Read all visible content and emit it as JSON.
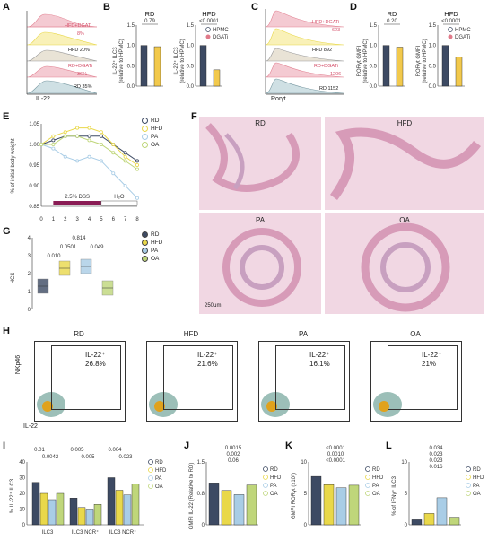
{
  "panels": {
    "A": {
      "letter": "A",
      "xlabel": "IL-22",
      "labels": [
        "HFD+DGATi",
        "8%",
        "HFD 20%",
        "RD+DGATi",
        "36%",
        "RD 35%"
      ]
    },
    "B": {
      "letter": "B",
      "rd_title": "RD",
      "hfd_title": "HFD",
      "ylabel": "IL-22⁺ ILC3",
      "ylabel2": "(relative to HPMC)",
      "p_rd": "0.79",
      "p_hfd": "<0.0001",
      "legend": [
        "HPMC",
        "DGATi"
      ]
    },
    "C": {
      "letter": "C",
      "xlabel": "Rorγt",
      "labels": [
        "HFD+DGATi",
        "623",
        "HFD 892",
        "RD+DGATi",
        "1206",
        "RD 1152"
      ]
    },
    "D": {
      "letter": "D",
      "rd_title": "RD",
      "hfd_title": "HFD",
      "ylabel": "RORγt GMFI",
      "ylabel2": "(relative to HPMC)",
      "p_rd": "0.20",
      "p_hfd": "<0.0001",
      "legend": [
        "HPMC",
        "DGATi"
      ]
    },
    "E": {
      "letter": "E",
      "ylabel": "% of initial body weight",
      "dss": "2.5% DSS",
      "h2o": "H₂O",
      "legend": [
        "RD",
        "HFD",
        "PA",
        "OA"
      ]
    },
    "F": {
      "letter": "F",
      "titles": [
        "RD",
        "HFD",
        "PA",
        "OA"
      ],
      "scale": "250μm"
    },
    "G": {
      "letter": "G",
      "ylabel": "HCS",
      "pvals": [
        "0.814",
        "0.0501",
        "0.049",
        "0.010"
      ],
      "legend": [
        "RD",
        "HFD",
        "PA",
        "OA"
      ]
    },
    "H": {
      "letter": "H",
      "ylabel": "NKp46",
      "xlabel": "IL-22",
      "gate_label": "IL-22⁺",
      "titles": [
        "RD",
        "HFD",
        "PA",
        "OA"
      ],
      "values": [
        "26.8%",
        "21.6%",
        "16.1%",
        "21%"
      ]
    },
    "I": {
      "letter": "I",
      "ylabel": "% IL-22⁺ ILC3",
      "groups": [
        "ILC3",
        "ILC3 NCR⁺",
        "ILC3 NCR⁻"
      ],
      "pvals": [
        "0.01",
        "0.0042",
        "0.005",
        "0.005",
        "0.004",
        "0.023"
      ],
      "legend": [
        "RD",
        "HFD",
        "PA",
        "OA"
      ]
    },
    "J": {
      "letter": "J",
      "ylabel": "GMFI IL-22 (Relative to RD)",
      "pvals": [
        "0.0015",
        "0.002",
        "0.06"
      ],
      "legend": [
        "RD",
        "HFD",
        "PA",
        "OA"
      ]
    },
    "K": {
      "letter": "K",
      "ylabel": "GMFI RORγt (x10³)",
      "pvals": [
        "<0.0001",
        "0.0010",
        "<0.0001"
      ],
      "legend": [
        "RD",
        "HFD",
        "PA",
        "OA"
      ]
    },
    "L": {
      "letter": "L",
      "ylabel": "% of IFNγ⁺ ILC3",
      "pvals": [
        "0.034",
        "0.023",
        "0.023",
        "0.016"
      ],
      "legend": [
        "RD",
        "HFD",
        "PA",
        "OA"
      ]
    }
  },
  "colors": {
    "RD": "#3d4a63",
    "HFD": "#e9d84a",
    "PA": "#a9cde6",
    "OA": "#bfd67a",
    "HPMC": "#3d4a63",
    "DGATi": "#e07a8a"
  },
  "chart_data": [
    {
      "type": "bar",
      "panel": "B-RD",
      "categories": [
        "HPMC",
        "DGATi"
      ],
      "values": [
        1.0,
        0.97
      ],
      "ylim": [
        0,
        1.5
      ]
    },
    {
      "type": "bar",
      "panel": "B-HFD",
      "categories": [
        "HPMC",
        "DGATi"
      ],
      "values": [
        1.0,
        0.4
      ],
      "ylim": [
        0,
        1.5
      ]
    },
    {
      "type": "bar",
      "panel": "D-RD",
      "categories": [
        "HPMC",
        "DGATi"
      ],
      "values": [
        1.0,
        0.96
      ],
      "ylim": [
        0,
        1.5
      ]
    },
    {
      "type": "bar",
      "panel": "D-HFD",
      "categories": [
        "HPMC",
        "DGATi"
      ],
      "values": [
        1.0,
        0.72
      ],
      "ylim": [
        0,
        1.5
      ]
    },
    {
      "type": "line",
      "panel": "E",
      "x": [
        0,
        1,
        2,
        3,
        4,
        5,
        6,
        7,
        8
      ],
      "xlim": [
        0,
        8
      ],
      "ylim": [
        0.85,
        1.05
      ],
      "series": [
        {
          "name": "RD",
          "values": [
            1.0,
            1.01,
            1.02,
            1.02,
            1.02,
            1.02,
            1.0,
            0.98,
            0.96
          ]
        },
        {
          "name": "HFD",
          "values": [
            1.0,
            1.02,
            1.03,
            1.04,
            1.04,
            1.03,
            1.0,
            0.97,
            0.95
          ]
        },
        {
          "name": "PA",
          "values": [
            1.0,
            0.99,
            0.97,
            0.96,
            0.97,
            0.96,
            0.93,
            0.9,
            0.87
          ]
        },
        {
          "name": "OA",
          "values": [
            1.0,
            1.0,
            1.02,
            1.02,
            1.01,
            1.0,
            0.98,
            0.96,
            0.94
          ]
        }
      ]
    },
    {
      "type": "bar",
      "panel": "G",
      "categories": [
        "RD",
        "HFD",
        "PA",
        "OA"
      ],
      "values": [
        1.3,
        2.3,
        2.4,
        1.2
      ],
      "ylim": [
        0,
        4
      ]
    },
    {
      "type": "bar",
      "panel": "I",
      "categories": [
        "ILC3",
        "ILC3 NCR⁺",
        "ILC3 NCR⁻"
      ],
      "ylim": [
        0,
        40
      ],
      "series": [
        {
          "name": "RD",
          "values": [
            27,
            17,
            30
          ]
        },
        {
          "name": "HFD",
          "values": [
            20,
            11,
            22
          ]
        },
        {
          "name": "PA",
          "values": [
            16,
            10,
            19
          ]
        },
        {
          "name": "OA",
          "values": [
            20,
            13,
            26
          ]
        }
      ]
    },
    {
      "type": "bar",
      "panel": "J",
      "categories": [
        "RD",
        "HFD",
        "PA",
        "OA"
      ],
      "values": [
        1.0,
        0.82,
        0.72,
        0.95
      ],
      "ylim": [
        0,
        1.5
      ]
    },
    {
      "type": "bar",
      "panel": "K",
      "categories": [
        "RD",
        "HFD",
        "PA",
        "OA"
      ],
      "values": [
        7.7,
        6.4,
        5.9,
        6.3
      ],
      "ylim": [
        0,
        10
      ]
    },
    {
      "type": "bar",
      "panel": "L",
      "categories": [
        "RD",
        "HFD",
        "PA",
        "OA"
      ],
      "values": [
        0.8,
        1.8,
        4.3,
        1.2
      ],
      "ylim": [
        0,
        10
      ]
    }
  ]
}
